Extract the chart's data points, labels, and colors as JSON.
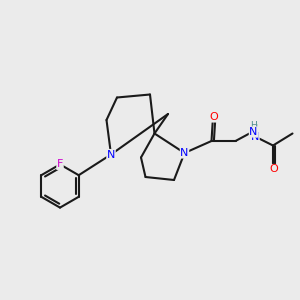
{
  "background_color": "#ebebeb",
  "bond_color": "#1a1a1a",
  "bond_lw": 1.5,
  "atom_colors": {
    "N": "#0000ff",
    "O": "#ff0000",
    "F": "#cc00cc",
    "H": "#4a8a8a",
    "C": "#1a1a1a"
  },
  "font_size": 7.5,
  "fig_size": [
    3.0,
    3.0
  ],
  "dpi": 100
}
